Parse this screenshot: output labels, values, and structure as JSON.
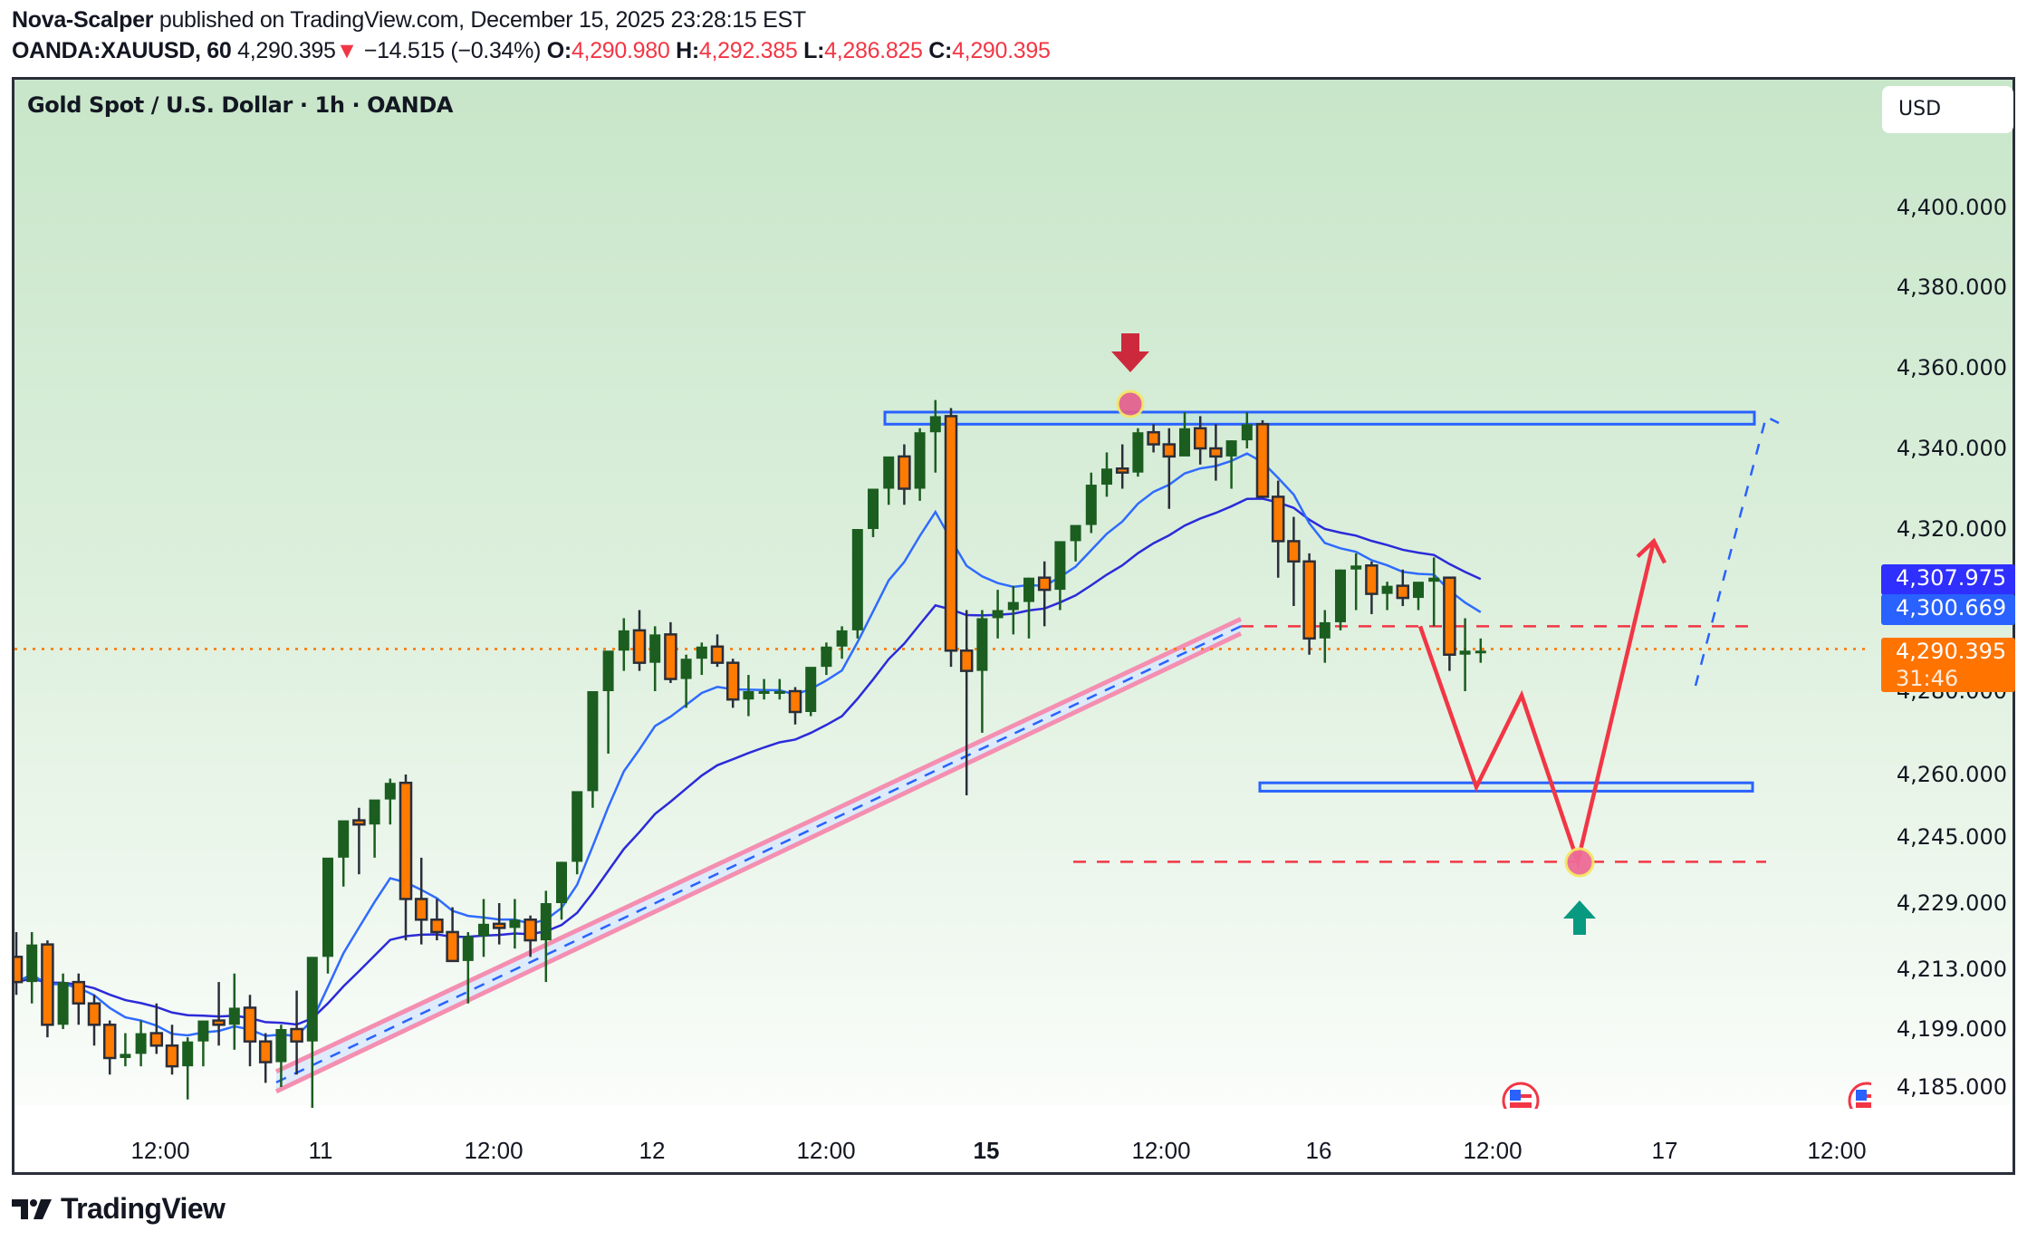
{
  "header": {
    "author": "Nova-Scalper",
    "published_text": " published on TradingView.com, December 15, 2025 23:28:15 EST",
    "symbol": "OANDA:XAUUSD, 60",
    "last": "4,290.395",
    "change_icon": "triangle-down-icon",
    "change_glyph": "▼",
    "change": "−14.515 (−0.34%)",
    "o_label": "O:",
    "o": "4,290.980",
    "h_label": "H:",
    "h": "4,292.385",
    "l_label": "L:",
    "l": "4,286.825",
    "c_label": "C:",
    "c": "4,290.395"
  },
  "chart_title": "Gold Spot / U.S. Dollar · 1h · OANDA",
  "currency_button": "USD",
  "price_axis": {
    "labels": [
      "4,400.000",
      "4,380.000",
      "4,360.000",
      "4,340.000",
      "4,320.000",
      "4,280.000",
      "4,260.000",
      "4,245.000",
      "4,229.000",
      "4,213.000",
      "4,199.000",
      "4,185.000"
    ],
    "tags": [
      {
        "value": "4,307.975",
        "color": "#2f2fff"
      },
      {
        "value": "4,300.669",
        "color": "#2962ff"
      },
      {
        "value": "4,290.395",
        "sub": "31:46",
        "color": "#ff7300"
      }
    ]
  },
  "time_axis": [
    {
      "label": "12:00",
      "bold": false
    },
    {
      "label": "11",
      "bold": false
    },
    {
      "label": "12:00",
      "bold": false
    },
    {
      "label": "12",
      "bold": false
    },
    {
      "label": "12:00",
      "bold": false
    },
    {
      "label": "15",
      "bold": true
    },
    {
      "label": "12:00",
      "bold": false
    },
    {
      "label": "16",
      "bold": false
    },
    {
      "label": "12:00",
      "bold": false
    },
    {
      "label": "17",
      "bold": false
    },
    {
      "label": "12:00",
      "bold": false
    }
  ],
  "brand": "TradingView",
  "colors": {
    "up": "#1b5e20",
    "down": "#ff7a00",
    "outline": "#2a2e39",
    "ema_fast": "#2f6bff",
    "ema_slow": "#2b2bd9",
    "zone": "#2962ff",
    "projection": "#f23645",
    "trend_pink": "#f48fb1",
    "last_price": "#ff7300"
  },
  "chart_data": {
    "type": "candlestick",
    "title": "Gold Spot / U.S. Dollar · 1h · OANDA",
    "symbol": "OANDA:XAUUSD",
    "interval": "60",
    "y_ticks": [
      4400,
      4380,
      4360,
      4340,
      4320,
      4280,
      4260,
      4245,
      4229,
      4213,
      4199,
      4185
    ],
    "x_ticks": [
      "12:00",
      "11",
      "12:00",
      "12",
      "12:00",
      "15",
      "12:00",
      "16",
      "12:00",
      "17",
      "12:00"
    ],
    "last_price": 4290.395,
    "ema_values_right": [
      4307.975,
      4300.669
    ],
    "candles": [
      [
        4216,
        4222,
        4207,
        4210
      ],
      [
        4210,
        4222,
        4205,
        4219
      ],
      [
        4219,
        4220,
        4197,
        4200
      ],
      [
        4200,
        4212,
        4199,
        4210
      ],
      [
        4210,
        4212,
        4200,
        4205
      ],
      [
        4205,
        4207,
        4195,
        4200
      ],
      [
        4200,
        4201,
        4188,
        4192
      ],
      [
        4192,
        4198,
        4190,
        4193
      ],
      [
        4193,
        4201,
        4190,
        4198
      ],
      [
        4198,
        4205,
        4193,
        4195
      ],
      [
        4195,
        4200,
        4188,
        4190
      ],
      [
        4190,
        4197,
        4182,
        4196
      ],
      [
        4196,
        4200,
        4190,
        4201
      ],
      [
        4201,
        4210,
        4195,
        4200
      ],
      [
        4200,
        4212,
        4194,
        4204
      ],
      [
        4204,
        4207,
        4190,
        4196
      ],
      [
        4196,
        4198,
        4186,
        4191
      ],
      [
        4191,
        4200,
        4185,
        4199
      ],
      [
        4199,
        4208,
        4188,
        4196
      ],
      [
        4196,
        4200,
        4180,
        4216
      ],
      [
        4216,
        4236,
        4212,
        4240
      ],
      [
        4240,
        4246,
        4233,
        4249
      ],
      [
        4249,
        4252,
        4236,
        4248
      ],
      [
        4248,
        4252,
        4240,
        4254
      ],
      [
        4254,
        4259,
        4248,
        4258
      ],
      [
        4258,
        4260,
        4220,
        4230
      ],
      [
        4230,
        4240,
        4219,
        4225
      ],
      [
        4225,
        4230,
        4220,
        4222
      ],
      [
        4222,
        4228,
        4218,
        4215
      ],
      [
        4215,
        4222,
        4205,
        4221
      ],
      [
        4221,
        4230,
        4216,
        4224
      ],
      [
        4224,
        4229,
        4219,
        4223
      ],
      [
        4223,
        4230,
        4218,
        4225
      ],
      [
        4225,
        4226,
        4216,
        4220
      ],
      [
        4220,
        4232,
        4210,
        4229
      ],
      [
        4229,
        4239,
        4225,
        4239
      ],
      [
        4239,
        4255,
        4236,
        4256
      ],
      [
        4256,
        4270,
        4252,
        4280
      ],
      [
        4280,
        4285,
        4265,
        4290
      ],
      [
        4290,
        4298,
        4285,
        4295
      ],
      [
        4295,
        4300,
        4285,
        4287
      ],
      [
        4287,
        4296,
        4280,
        4294
      ],
      [
        4294,
        4297,
        4282,
        4283
      ],
      [
        4283,
        4289,
        4276,
        4288
      ],
      [
        4288,
        4292,
        4284,
        4291
      ],
      [
        4291,
        4294,
        4286,
        4287
      ],
      [
        4287,
        4288,
        4276,
        4278
      ],
      [
        4278,
        4284,
        4274,
        4280
      ],
      [
        4280,
        4283,
        4278,
        4280
      ],
      [
        4280,
        4283,
        4278,
        4280
      ],
      [
        4280,
        4281,
        4272,
        4275
      ],
      [
        4275,
        4285,
        4274,
        4286
      ],
      [
        4286,
        4292,
        4284,
        4291
      ],
      [
        4291,
        4296,
        4288,
        4295
      ],
      [
        4295,
        4305,
        4293,
        4320
      ],
      [
        4320,
        4330,
        4318,
        4330
      ],
      [
        4330,
        4336,
        4326,
        4338
      ],
      [
        4338,
        4341,
        4326,
        4330
      ],
      [
        4330,
        4345,
        4327,
        4344
      ],
      [
        4344,
        4352,
        4334,
        4348
      ],
      [
        4348,
        4350,
        4286,
        4290
      ],
      [
        4290,
        4300,
        4255,
        4285
      ],
      [
        4285,
        4300,
        4270,
        4298
      ],
      [
        4298,
        4305,
        4293,
        4300
      ],
      [
        4300,
        4306,
        4294,
        4302
      ],
      [
        4302,
        4308,
        4293,
        4308
      ],
      [
        4308,
        4312,
        4296,
        4305
      ],
      [
        4305,
        4316,
        4300,
        4317
      ],
      [
        4317,
        4320,
        4312,
        4321
      ],
      [
        4321,
        4334,
        4319,
        4331
      ],
      [
        4331,
        4339,
        4328,
        4335
      ],
      [
        4335,
        4341,
        4330,
        4334
      ],
      [
        4334,
        4345,
        4333,
        4344
      ],
      [
        4344,
        4346,
        4339,
        4341
      ],
      [
        4341,
        4345,
        4325,
        4338
      ],
      [
        4338,
        4349,
        4339,
        4345
      ],
      [
        4345,
        4348,
        4336,
        4340
      ],
      [
        4340,
        4346,
        4332,
        4338
      ],
      [
        4338,
        4342,
        4330,
        4342
      ],
      [
        4342,
        4349,
        4340,
        4346
      ],
      [
        4346,
        4347,
        4329,
        4328
      ],
      [
        4328,
        4332,
        4308,
        4317
      ],
      [
        4317,
        4323,
        4301,
        4312
      ],
      [
        4312,
        4314,
        4289,
        4293
      ],
      [
        4293,
        4300,
        4287,
        4297
      ],
      [
        4297,
        4310,
        4295,
        4310
      ],
      [
        4310,
        4314,
        4300,
        4311
      ],
      [
        4311,
        4312,
        4299,
        4304
      ],
      [
        4304,
        4307,
        4300,
        4306
      ],
      [
        4306,
        4310,
        4301,
        4303
      ],
      [
        4303,
        4306,
        4300,
        4307
      ],
      [
        4307,
        4313,
        4296,
        4308
      ],
      [
        4308,
        4308,
        4285,
        4289
      ],
      [
        4289,
        4298,
        4280,
        4290
      ],
      [
        4290,
        4293,
        4287,
        4290
      ]
    ],
    "annotations": {
      "resistance_zone": [
        4346,
        4349
      ],
      "support_zone": [
        4256,
        4258
      ],
      "dashed_levels": [
        4296,
        4239
      ],
      "projected_path": [
        4296,
        4257,
        4279,
        4239,
        4317
      ],
      "rising_channel": "from ~4187 (Dec 11) to ~4296 (Dec 15)",
      "marker_sell": "down arrow above 4349 high",
      "marker_buy": "up arrow below 4239 target"
    }
  }
}
